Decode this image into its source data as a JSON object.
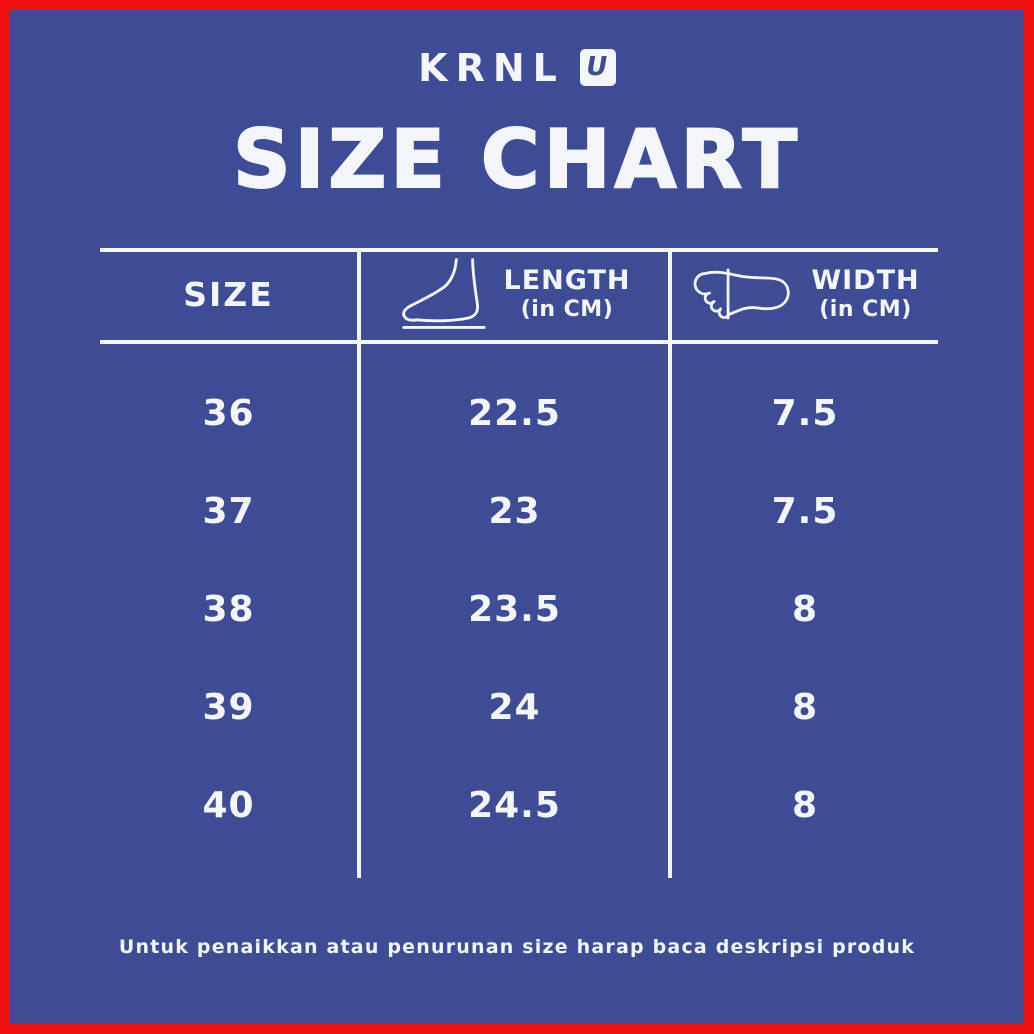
{
  "theme": {
    "background": "#3E4C96",
    "border": "#EE0F0F",
    "ink": "#F4F5F8"
  },
  "logo": {
    "brand": "KRNL",
    "mark_letter": "U"
  },
  "title": "SIZE CHART",
  "table": {
    "columns": [
      {
        "label": "SIZE",
        "sublabel": "",
        "icon": ""
      },
      {
        "label": "LENGTH",
        "sublabel": "(in CM)",
        "icon": "foot-side-icon"
      },
      {
        "label": "WIDTH",
        "sublabel": "(in CM)",
        "icon": "foot-sole-icon"
      }
    ],
    "rows": [
      {
        "size": "36",
        "length": "22.5",
        "width": "7.5"
      },
      {
        "size": "37",
        "length": "23",
        "width": "7.5"
      },
      {
        "size": "38",
        "length": "23.5",
        "width": "8"
      },
      {
        "size": "39",
        "length": "24",
        "width": "8"
      },
      {
        "size": "40",
        "length": "24.5",
        "width": "8"
      }
    ]
  },
  "footer": {
    "note": "Untuk penaikkan atau penurunan size harap baca deskripsi produk"
  },
  "chart_data": {
    "type": "table",
    "title": "SIZE CHART",
    "columns": [
      "SIZE",
      "LENGTH (in CM)",
      "WIDTH (in CM)"
    ],
    "rows": [
      [
        36,
        22.5,
        7.5
      ],
      [
        37,
        23,
        7.5
      ],
      [
        38,
        23.5,
        8
      ],
      [
        39,
        24,
        8
      ],
      [
        40,
        24.5,
        8
      ]
    ]
  }
}
